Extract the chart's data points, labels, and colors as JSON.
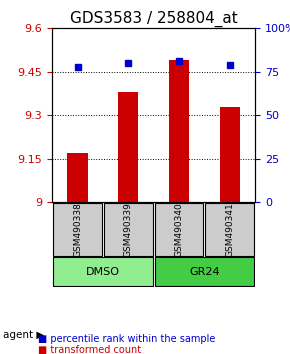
{
  "title": "GDS3583 / 258804_at",
  "categories": [
    "GSM490338",
    "GSM490339",
    "GSM490340",
    "GSM490341"
  ],
  "bar_values": [
    9.17,
    9.38,
    9.49,
    9.33
  ],
  "percentile_values": [
    78,
    80,
    81,
    79
  ],
  "bar_color": "#cc0000",
  "percentile_color": "#0000cc",
  "ylim_left": [
    9.0,
    9.6
  ],
  "ylim_right": [
    0,
    100
  ],
  "yticks_left": [
    9.0,
    9.15,
    9.3,
    9.45,
    9.6
  ],
  "ytick_labels_left": [
    "9",
    "9.15",
    "9.3",
    "9.45",
    "9.6"
  ],
  "yticks_right": [
    0,
    25,
    50,
    75,
    100
  ],
  "ytick_labels_right": [
    "0",
    "25",
    "50",
    "75",
    "100%"
  ],
  "group_labels": [
    "DMSO",
    "GR24"
  ],
  "group_colors": [
    "#90EE90",
    "#00cc44"
  ],
  "group_ranges": [
    [
      0,
      2
    ],
    [
      2,
      4
    ]
  ],
  "bar_width": 0.4,
  "agent_label": "agent",
  "legend_items": [
    {
      "label": "transformed count",
      "color": "#cc0000"
    },
    {
      "label": "percentile rank within the sample",
      "color": "#0000cc"
    }
  ],
  "grid_color": "black",
  "grid_linestyle": "dotted",
  "bar_box_color": "#cccccc",
  "title_fontsize": 11,
  "tick_fontsize": 8,
  "legend_fontsize": 7
}
